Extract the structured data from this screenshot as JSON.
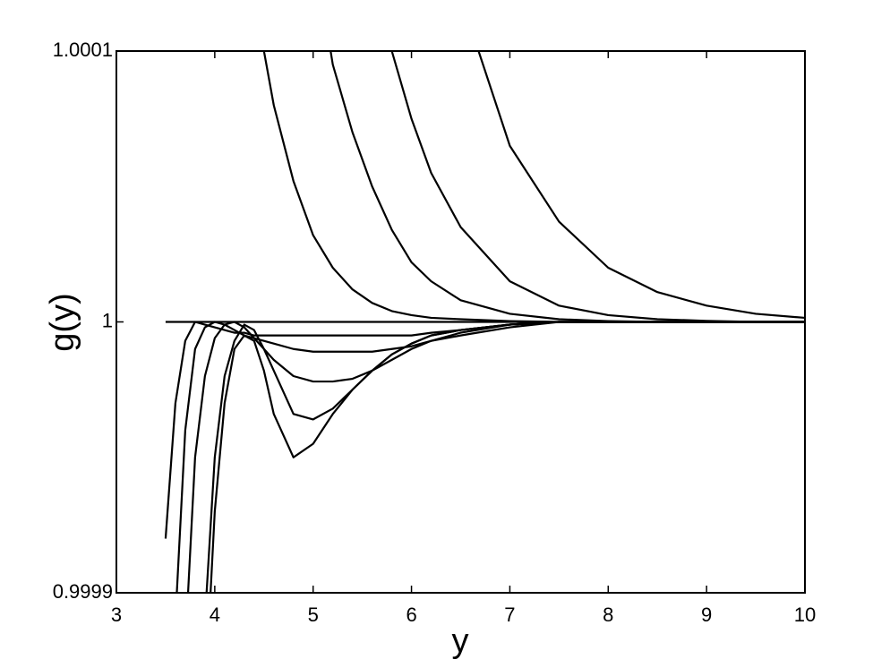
{
  "chart_data": {
    "type": "line",
    "x_label": "y",
    "y_label": "g(y)",
    "xlim": [
      3,
      10
    ],
    "xticks": [
      3,
      4,
      5,
      6,
      7,
      8,
      9,
      10
    ],
    "ylim": [
      0.9999,
      1.0001
    ],
    "yticks": [
      0.9999,
      1,
      1.0001
    ],
    "line_color": "#000000",
    "x": [
      3.5,
      3.6,
      3.7,
      3.8,
      3.9,
      4.0,
      4.1,
      4.2,
      4.3,
      4.4,
      4.5,
      4.6,
      4.8,
      5.0,
      5.2,
      5.4,
      5.6,
      5.8,
      6.0,
      6.2,
      6.5,
      7.0,
      7.5,
      8.0,
      8.5,
      9.0,
      9.5,
      10.0
    ],
    "series": [
      {
        "values": [
          1,
          1,
          1,
          1,
          1,
          1,
          1,
          1,
          1,
          1,
          1,
          1,
          1,
          1,
          1,
          1,
          1,
          1,
          1,
          1,
          1,
          1,
          1,
          1,
          1,
          1,
          1,
          1
        ]
      },
      {
        "values": [
          0.99992,
          0.99997,
          0.999993,
          1.0,
          0.999999,
          0.999998,
          0.999997,
          0.999996,
          0.999996,
          0.999995,
          0.999995,
          0.999995,
          0.999995,
          0.999995,
          0.999995,
          0.999995,
          0.999995,
          0.999995,
          0.999995,
          0.999996,
          0.999997,
          0.999999,
          1.0,
          1.0,
          1.0,
          1.0,
          1.0,
          1.0
        ]
      },
      {
        "values": [
          null,
          0.99989,
          0.99996,
          0.99999,
          0.999998,
          1.0,
          0.999999,
          0.999997,
          0.999995,
          0.999994,
          0.999993,
          0.999992,
          0.99999,
          0.999989,
          0.999989,
          0.999989,
          0.999989,
          0.99999,
          0.999991,
          0.999993,
          0.999995,
          0.999998,
          1.0,
          1.0,
          1.0,
          1.0,
          1.0,
          1.0
        ]
      },
      {
        "values": [
          null,
          null,
          0.99988,
          0.99995,
          0.99998,
          0.999994,
          0.999999,
          1.0,
          0.999998,
          0.999994,
          0.99999,
          0.999986,
          0.99998,
          0.999978,
          0.999978,
          0.999979,
          0.999982,
          0.999986,
          0.99999,
          0.999993,
          0.999996,
          0.999999,
          1.0,
          1.0,
          1.0,
          1.0,
          1.0,
          1.0
        ]
      },
      {
        "values": [
          null,
          null,
          null,
          null,
          0.99989,
          0.99995,
          0.99998,
          0.999993,
          0.999999,
          0.999997,
          0.99999,
          0.999982,
          0.999966,
          0.999964,
          0.999968,
          0.999975,
          0.999982,
          0.999988,
          0.999992,
          0.999995,
          0.999997,
          0.999999,
          1.0,
          1.0,
          1.0,
          1.0,
          1.0,
          1.0
        ]
      },
      {
        "values": [
          null,
          null,
          null,
          null,
          0.99986,
          0.99993,
          0.99997,
          0.99999,
          0.999995,
          0.999993,
          0.999982,
          0.999966,
          0.99995,
          0.999955,
          0.999966,
          0.999975,
          0.999982,
          0.999988,
          0.999992,
          0.999995,
          0.999997,
          0.999999,
          1.0,
          1.0,
          1.0,
          1.0,
          1.0,
          1.0
        ]
      },
      {
        "values": [
          null,
          null,
          null,
          null,
          null,
          null,
          null,
          null,
          null,
          1.00013,
          1.0001,
          1.00008,
          1.000052,
          1.000032,
          1.00002,
          1.000012,
          1.000007,
          1.000004,
          1.0000025,
          1.0000015,
          1.000001,
          1.0000003,
          1.0,
          1.0,
          1.0,
          1.0,
          1.0,
          1.0
        ]
      },
      {
        "values": [
          null,
          null,
          null,
          null,
          null,
          null,
          null,
          null,
          null,
          null,
          null,
          null,
          null,
          1.00014,
          1.000095,
          1.00007,
          1.00005,
          1.000034,
          1.000022,
          1.000015,
          1.000008,
          1.000003,
          1.000001,
          1.0000003,
          1.0,
          1.0,
          1.0,
          1.0
        ]
      },
      {
        "values": [
          null,
          null,
          null,
          null,
          null,
          null,
          null,
          null,
          null,
          null,
          null,
          null,
          null,
          null,
          null,
          null,
          1.00013,
          1.0001,
          1.000075,
          1.000055,
          1.000035,
          1.000015,
          1.000006,
          1.0000025,
          1.000001,
          1.0000004,
          1.0,
          1.0
        ]
      },
      {
        "values": [
          null,
          null,
          null,
          null,
          null,
          null,
          null,
          null,
          null,
          null,
          null,
          null,
          null,
          null,
          null,
          null,
          null,
          null,
          null,
          null,
          1.00012,
          1.000065,
          1.000037,
          1.00002,
          1.000011,
          1.000006,
          1.000003,
          1.0000015
        ]
      }
    ]
  }
}
